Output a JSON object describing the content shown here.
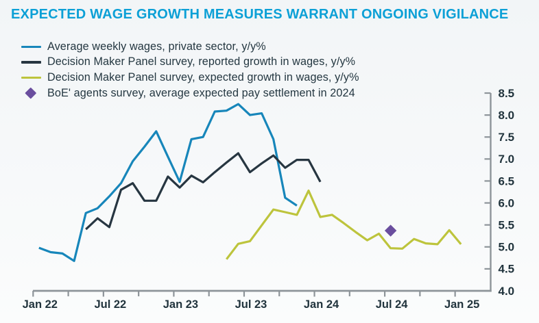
{
  "title": "EXPECTED WAGE GROWTH MEASURES WARRANT ONGOING VIGILANCE",
  "colors": {
    "title": "#0CA0D6",
    "text": "#243741",
    "axis_line": "#8D9499",
    "tick_label": "#21343D",
    "awe_line": "#1786BA",
    "dmp_reported_line": "#273641",
    "dmp_expected_line": "#BDC43C",
    "boe_point": "#6A4E9E",
    "background_top": "#F2F5F7",
    "background_bottom": "#FBFCFC"
  },
  "legend": [
    {
      "label": "Average weekly wages, private sector, y/y%",
      "marker": "line",
      "color": "#1786BA"
    },
    {
      "label": "Decision Maker Panel survey, reported growth in wages, y/y%",
      "marker": "line",
      "color": "#273641"
    },
    {
      "label": "Decision Maker Panel survey, expected growth in wages, y/y%",
      "marker": "line",
      "color": "#BDC43C"
    },
    {
      "label": "BoE' agents survey, average expected pay settlement in 2024",
      "marker": "diamond",
      "color": "#6A4E9E"
    }
  ],
  "chart_data": {
    "type": "line",
    "title": "EXPECTED WAGE GROWTH MEASURES WARRANT ONGOING VIGILANCE",
    "ylim": [
      4.0,
      8.5
    ],
    "y_axis_side": "right",
    "grid": false,
    "y_tick_labels": [
      "4.0",
      "4.5",
      "5.0",
      "5.5",
      "6.0",
      "6.5",
      "7.0",
      "7.5",
      "8.0",
      "8.5"
    ],
    "x_major_ticks": [
      "Jan 22",
      "Jul 22",
      "Jan 23",
      "Jul 23",
      "Jan 24",
      "Jul 24",
      "Jan 25"
    ],
    "x_minor_ticks": [
      "Apr 22",
      "Oct 22",
      "Apr 23",
      "Oct 23",
      "Apr 24",
      "Oct 24"
    ],
    "series": [
      {
        "name": "Average weekly wages, private sector, y/y%",
        "color_key": "awe_line",
        "months": [
          "Jan 22",
          "Feb 22",
          "Mar 22",
          "Apr 22",
          "May 22",
          "Jun 22",
          "Jul 22",
          "Aug 22",
          "Sep 22",
          "Oct 22",
          "Nov 22",
          "Dec 22",
          "Jan 23",
          "Feb 23",
          "Mar 23",
          "Apr 23",
          "May 23",
          "Jun 23",
          "Jul 23",
          "Aug 23",
          "Sep 23",
          "Oct 23",
          "Nov 23"
        ],
        "values": [
          4.98,
          4.88,
          4.85,
          4.68,
          5.77,
          5.88,
          6.15,
          6.45,
          6.95,
          7.28,
          7.63,
          7.05,
          6.48,
          7.45,
          7.5,
          8.08,
          8.1,
          8.25,
          8.0,
          8.04,
          7.45,
          6.12,
          5.94
        ]
      },
      {
        "name": "Decision Maker Panel survey, reported growth in wages, y/y%",
        "color_key": "dmp_reported_line",
        "months": [
          "May 22",
          "Jun 22",
          "Jul 22",
          "Aug 22",
          "Sep 22",
          "Oct 22",
          "Nov 22",
          "Dec 22",
          "Jan 23",
          "Feb 23",
          "Mar 23",
          "Apr 23",
          "May 23",
          "Jun 23",
          "Jul 23",
          "Aug 23",
          "Sep 23",
          "Oct 23",
          "Nov 23",
          "Dec 23",
          "Jan 24"
        ],
        "values": [
          5.4,
          5.65,
          5.45,
          6.3,
          6.45,
          6.05,
          6.05,
          6.6,
          6.35,
          6.62,
          6.47,
          6.7,
          6.92,
          7.13,
          6.7,
          6.9,
          7.08,
          6.8,
          6.98,
          6.98,
          6.48
        ]
      },
      {
        "name": "Decision Maker Panel survey, expected growth in wages, y/y%",
        "color_key": "dmp_expected_line",
        "months": [
          "May 23",
          "Jun 23",
          "Jul 23",
          "Aug 23",
          "Sep 23",
          "Oct 23",
          "Nov 23",
          "Dec 23",
          "Jan 24",
          "Feb 24",
          "Mar 24",
          "Apr 24",
          "May 24",
          "Jun 24",
          "Jul 24",
          "Aug 24",
          "Sep 24",
          "Oct 24",
          "Nov 24",
          "Dec 24",
          "Jan 25"
        ],
        "values": [
          4.72,
          5.07,
          5.13,
          5.49,
          5.85,
          5.79,
          5.73,
          6.28,
          5.68,
          5.73,
          5.54,
          5.34,
          5.15,
          5.3,
          4.97,
          4.96,
          5.18,
          5.08,
          5.06,
          5.38,
          5.06
        ]
      }
    ],
    "point_series": {
      "name": "BoE' agents survey, average expected pay settlement in 2024",
      "marker": "diamond",
      "color_key": "boe_point",
      "month": "Jul 24",
      "value": 5.37
    }
  }
}
